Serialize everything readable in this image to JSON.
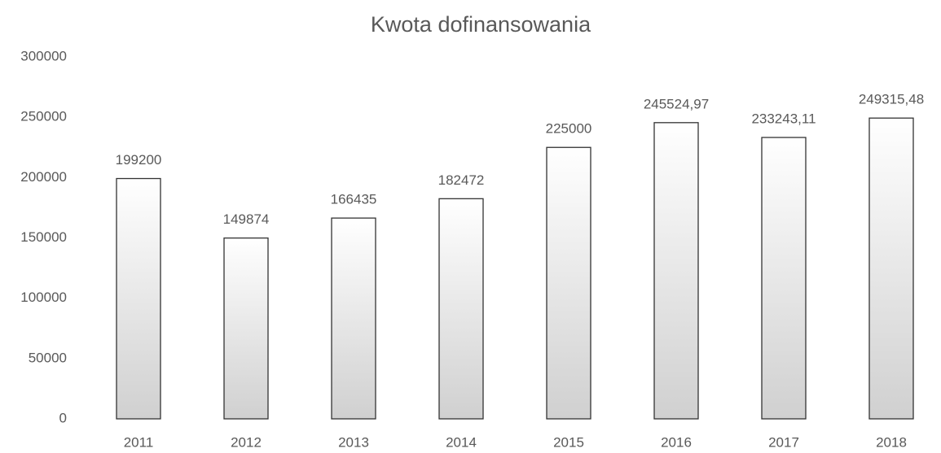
{
  "chart_data": {
    "type": "bar",
    "title": "Kwota dofinansowania",
    "categories": [
      "2011",
      "2012",
      "2013",
      "2014",
      "2015",
      "2016",
      "2017",
      "2018"
    ],
    "values": [
      199200,
      149874,
      166435,
      182472,
      225000,
      245524.97,
      233243.11,
      249315.48
    ],
    "value_labels": [
      "199200",
      "149874",
      "166435",
      "182472",
      "225000",
      "245524,97",
      "233243,11",
      "249315,48"
    ],
    "color": "#d0d0d0",
    "edge_color": "#333333",
    "ylim": [
      0,
      300000
    ],
    "yticks": [
      0,
      50000,
      100000,
      150000,
      200000,
      250000,
      300000
    ],
    "grid": false
  }
}
